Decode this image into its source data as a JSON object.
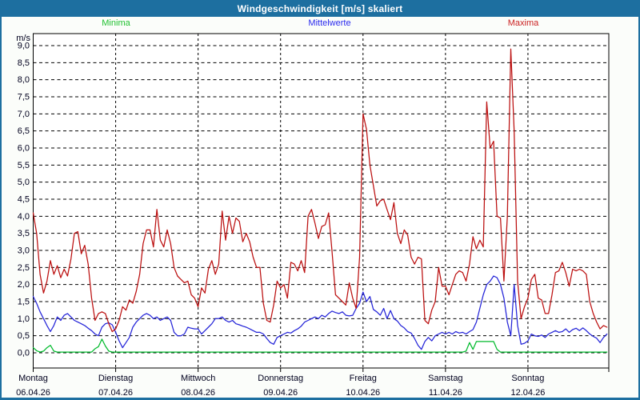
{
  "window": {
    "title": "Windgeschwindigkeit [m/s] skaliert"
  },
  "legend": [
    {
      "label": "Minima",
      "color": "#1fc02f"
    },
    {
      "label": "Mittelwerte",
      "color": "#2b2bee"
    },
    {
      "label": "Maxima",
      "color": "#cb2222"
    }
  ],
  "chart_data": {
    "type": "line",
    "title": "Windgeschwindigkeit [m/s] skaliert",
    "unit_label": "m/s",
    "ylim": [
      0,
      9
    ],
    "y_tick_step": 0.5,
    "y_tick_labels": [
      "9,0",
      "8,5",
      "8,0",
      "7,5",
      "7,0",
      "6,5",
      "6,0",
      "5,5",
      "5,0",
      "4,5",
      "4,0",
      "3,5",
      "3,0",
      "2,5",
      "2,0",
      "1,5",
      "1,0",
      "0,5",
      "0,0"
    ],
    "grid": true,
    "legend_position": "top",
    "points_per_day": 24,
    "n_points": 168,
    "days": [
      {
        "name": "Montag",
        "date": "06.04.26"
      },
      {
        "name": "Dienstag",
        "date": "07.04.26"
      },
      {
        "name": "Mittwoch",
        "date": "08.04.26"
      },
      {
        "name": "Donnerstag",
        "date": "09.04.26"
      },
      {
        "name": "Freitag",
        "date": "10.04.26"
      },
      {
        "name": "Samstag",
        "date": "11.04.26"
      },
      {
        "name": "Sonntag",
        "date": "12.04.26"
      }
    ],
    "series": [
      {
        "name": "Minima",
        "color": "#00ba2c",
        "values": [
          0.15,
          0.06,
          0.02,
          0.05,
          0.15,
          0.22,
          0.05,
          0.02,
          0.02,
          0.02,
          0.02,
          0.02,
          0.02,
          0.02,
          0.02,
          0.02,
          0.02,
          0.02,
          0.12,
          0.18,
          0.4,
          0.2,
          0.05,
          0.02,
          0.02,
          0.02,
          0.02,
          0.02,
          0.02,
          0.02,
          0.02,
          0.02,
          0.02,
          0.02,
          0.02,
          0.02,
          0.02,
          0.02,
          0.02,
          0.02,
          0.02,
          0.02,
          0.02,
          0.02,
          0.02,
          0.02,
          0.02,
          0.02,
          0.02,
          0.02,
          0.02,
          0.02,
          0.02,
          0.02,
          0.02,
          0.02,
          0.02,
          0.02,
          0.02,
          0.02,
          0.02,
          0.02,
          0.02,
          0.02,
          0.02,
          0.02,
          0.02,
          0.02,
          0.02,
          0.02,
          0.02,
          0.02,
          0.02,
          0.02,
          0.02,
          0.02,
          0.02,
          0.02,
          0.02,
          0.02,
          0.02,
          0.02,
          0.02,
          0.02,
          0.02,
          0.02,
          0.02,
          0.02,
          0.02,
          0.02,
          0.02,
          0.02,
          0.02,
          0.02,
          0.02,
          0.02,
          0.02,
          0.02,
          0.02,
          0.02,
          0.02,
          0.02,
          0.02,
          0.02,
          0.02,
          0.02,
          0.02,
          0.02,
          0.02,
          0.02,
          0.02,
          0.02,
          0.02,
          0.02,
          0.02,
          0.02,
          0.02,
          0.02,
          0.02,
          0.02,
          0.02,
          0.02,
          0.02,
          0.02,
          0.02,
          0.02,
          0.05,
          0.3,
          0.1,
          0.33,
          0.33,
          0.33,
          0.33,
          0.33,
          0.33,
          0.1,
          0.02,
          0.02,
          0.02,
          0.02,
          0.02,
          0.02,
          0.02,
          0.02,
          0.02,
          0.02,
          0.02,
          0.02,
          0.02,
          0.02,
          0.02,
          0.02,
          0.02,
          0.02,
          0.02,
          0.02,
          0.02,
          0.02,
          0.02,
          0.02,
          0.02,
          0.02,
          0.02,
          0.02,
          0.02,
          0.02,
          0.02,
          0.02
        ]
      },
      {
        "name": "Mittelwerte",
        "color": "#2424d8",
        "values": [
          1.65,
          1.45,
          1.2,
          1.0,
          0.8,
          0.62,
          0.8,
          1.05,
          0.95,
          1.1,
          1.15,
          1.05,
          0.95,
          0.9,
          0.85,
          0.8,
          0.72,
          0.65,
          0.55,
          0.5,
          0.75,
          0.85,
          0.88,
          0.82,
          0.6,
          0.35,
          0.15,
          0.3,
          0.45,
          0.75,
          0.9,
          1.0,
          1.1,
          1.15,
          1.1,
          1.0,
          1.05,
          0.95,
          1.0,
          1.05,
          0.95,
          0.6,
          0.5,
          0.5,
          0.55,
          0.75,
          0.72,
          0.7,
          0.7,
          0.55,
          0.65,
          0.75,
          0.85,
          1.0,
          1.0,
          1.05,
          0.95,
          0.9,
          0.95,
          0.85,
          0.82,
          0.78,
          0.75,
          0.7,
          0.65,
          0.6,
          0.6,
          0.55,
          0.42,
          0.3,
          0.25,
          0.45,
          0.5,
          0.55,
          0.6,
          0.58,
          0.65,
          0.7,
          0.78,
          0.9,
          0.95,
          1.0,
          1.05,
          1.0,
          1.1,
          1.05,
          1.15,
          1.22,
          1.18,
          1.15,
          1.2,
          1.1,
          1.08,
          1.1,
          1.3,
          1.45,
          1.78,
          1.5,
          1.65,
          1.27,
          1.2,
          1.1,
          1.3,
          1.0,
          1.24,
          1.0,
          0.93,
          0.8,
          0.73,
          0.62,
          0.58,
          0.42,
          0.22,
          0.1,
          0.33,
          0.45,
          0.35,
          0.5,
          0.55,
          0.6,
          0.55,
          0.6,
          0.55,
          0.62,
          0.58,
          0.6,
          0.55,
          0.62,
          0.68,
          0.9,
          1.3,
          1.7,
          2.0,
          2.1,
          2.25,
          2.2,
          2.0,
          1.6,
          0.9,
          0.5,
          2.0,
          0.8,
          0.25,
          0.28,
          0.35,
          0.55,
          0.5,
          0.48,
          0.52,
          0.45,
          0.55,
          0.6,
          0.65,
          0.6,
          0.62,
          0.7,
          0.6,
          0.68,
          0.72,
          0.65,
          0.73,
          0.65,
          0.55,
          0.48,
          0.43,
          0.3,
          0.45,
          0.55
        ]
      },
      {
        "name": "Maxima",
        "color": "#bb0f0f",
        "values": [
          4.1,
          3.5,
          2.3,
          1.75,
          2.1,
          2.7,
          2.3,
          2.55,
          2.2,
          2.45,
          2.25,
          2.75,
          3.5,
          3.55,
          2.9,
          3.15,
          2.6,
          1.6,
          0.95,
          1.15,
          1.2,
          1.15,
          0.85,
          0.62,
          0.7,
          0.95,
          1.35,
          1.25,
          1.55,
          1.45,
          1.8,
          2.3,
          3.2,
          3.6,
          3.6,
          3.1,
          4.2,
          3.3,
          3.1,
          3.6,
          3.2,
          2.5,
          2.25,
          2.15,
          2.05,
          2.1,
          1.7,
          1.6,
          1.35,
          1.9,
          1.75,
          2.45,
          2.7,
          2.3,
          2.6,
          4.15,
          3.3,
          4.0,
          3.5,
          3.95,
          3.85,
          3.25,
          3.5,
          3.25,
          2.8,
          2.5,
          2.5,
          1.45,
          0.95,
          0.9,
          1.4,
          2.1,
          1.9,
          2.0,
          1.6,
          2.65,
          2.6,
          2.4,
          2.7,
          2.35,
          4.0,
          4.2,
          3.8,
          3.35,
          3.7,
          3.75,
          4.1,
          2.95,
          1.7,
          1.6,
          1.5,
          1.4,
          2.05,
          1.6,
          1.3,
          2.8,
          7.0,
          6.55,
          5.5,
          4.9,
          4.3,
          4.45,
          4.5,
          4.2,
          3.9,
          4.4,
          3.5,
          3.2,
          3.6,
          3.45,
          2.8,
          2.6,
          2.8,
          2.75,
          0.95,
          0.85,
          1.25,
          1.5,
          2.5,
          1.95,
          1.95,
          1.7,
          2.0,
          2.3,
          2.4,
          2.35,
          2.1,
          2.6,
          3.4,
          3.05,
          3.3,
          3.1,
          7.35,
          6.0,
          6.2,
          4.0,
          3.95,
          2.1,
          4.0,
          8.9,
          6.5,
          2.1,
          1.0,
          1.35,
          1.6,
          2.15,
          2.3,
          1.6,
          1.55,
          1.15,
          1.15,
          1.7,
          2.35,
          2.4,
          2.65,
          2.35,
          1.95,
          2.45,
          2.4,
          2.45,
          2.4,
          2.3,
          1.5,
          1.15,
          0.9,
          0.7,
          0.8,
          0.75
        ]
      }
    ]
  }
}
